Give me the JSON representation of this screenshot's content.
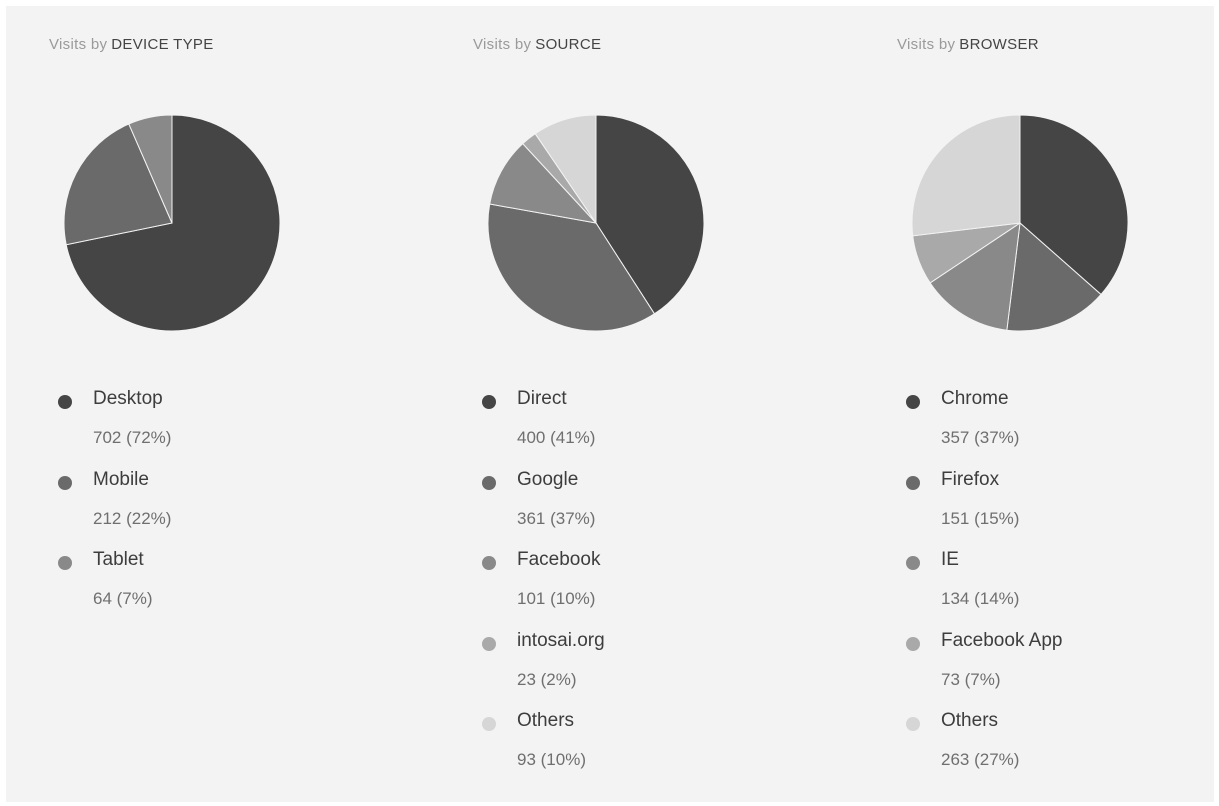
{
  "chart_data": [
    {
      "type": "pie",
      "title_prefix": "Visits by",
      "title": "DEVICE TYPE",
      "legend_position": "bottom",
      "slices": [
        {
          "label": "Desktop",
          "value": 702,
          "value_text": "702 (72%)",
          "color": "#454545"
        },
        {
          "label": "Mobile",
          "value": 212,
          "value_text": "212 (22%)",
          "color": "#6a6a6a"
        },
        {
          "label": "Tablet",
          "value": 64,
          "value_text": "64 (7%)",
          "color": "#898989"
        }
      ]
    },
    {
      "type": "pie",
      "title_prefix": "Visits by",
      "title": "SOURCE",
      "legend_position": "bottom",
      "slices": [
        {
          "label": "Direct",
          "value": 400,
          "value_text": "400 (41%)",
          "color": "#454545"
        },
        {
          "label": "Google",
          "value": 361,
          "value_text": "361 (37%)",
          "color": "#6a6a6a"
        },
        {
          "label": "Facebook",
          "value": 101,
          "value_text": "101 (10%)",
          "color": "#898989"
        },
        {
          "label": "intosai.org",
          "value": 23,
          "value_text": "23 (2%)",
          "color": "#a9a9a9"
        },
        {
          "label": "Others",
          "value": 93,
          "value_text": "93 (10%)",
          "color": "#d6d6d6"
        }
      ]
    },
    {
      "type": "pie",
      "title_prefix": "Visits by",
      "title": "BROWSER",
      "legend_position": "bottom",
      "slices": [
        {
          "label": "Chrome",
          "value": 357,
          "value_text": "357 (37%)",
          "color": "#454545"
        },
        {
          "label": "Firefox",
          "value": 151,
          "value_text": "151 (15%)",
          "color": "#6a6a6a"
        },
        {
          "label": "IE",
          "value": 134,
          "value_text": "134 (14%)",
          "color": "#898989"
        },
        {
          "label": "Facebook App",
          "value": 73,
          "value_text": "73 (7%)",
          "color": "#a9a9a9"
        },
        {
          "label": "Others",
          "value": 263,
          "value_text": "263 (27%)",
          "color": "#d6d6d6"
        }
      ]
    }
  ]
}
